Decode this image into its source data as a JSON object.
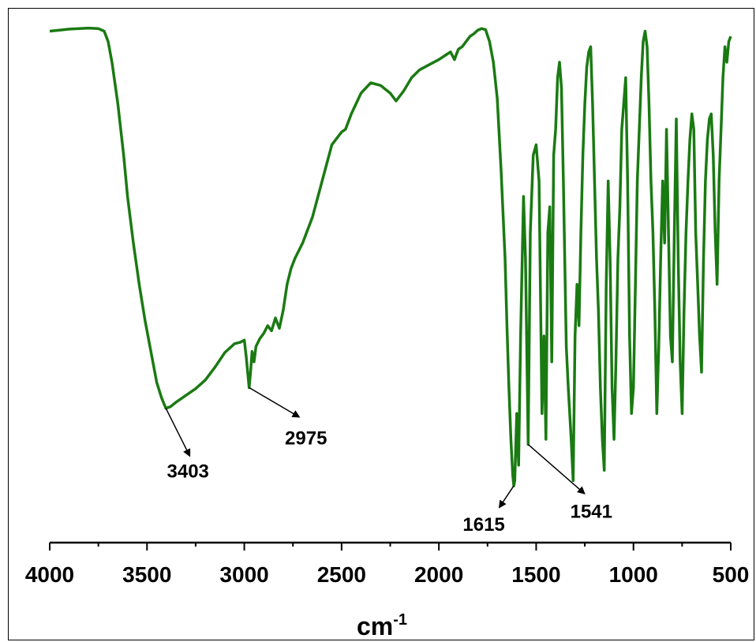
{
  "chart_data": {
    "type": "line",
    "title": "",
    "xlabel": "cm",
    "xlabel_superscript": "-1",
    "ylabel": "",
    "xlim": [
      4000,
      500
    ],
    "x_reversed": true,
    "ylim": [
      0,
      100
    ],
    "grid": false,
    "color": "#1a7a12",
    "x_ticks": [
      4000,
      3500,
      3000,
      2500,
      2000,
      1500,
      1000,
      500
    ],
    "annotations": [
      {
        "label": "3403",
        "x": 3403,
        "y": 26
      },
      {
        "label": "2975",
        "x": 2975,
        "y": 30
      },
      {
        "label": "1615",
        "x": 1615,
        "y": 11
      },
      {
        "label": "1541",
        "x": 1541,
        "y": 19
      }
    ],
    "series": [
      {
        "values": [
          [
            4000,
            99
          ],
          [
            3950,
            99.2
          ],
          [
            3900,
            99.4
          ],
          [
            3850,
            99.5
          ],
          [
            3800,
            99.6
          ],
          [
            3750,
            99.5
          ],
          [
            3720,
            99
          ],
          [
            3700,
            97
          ],
          [
            3680,
            93
          ],
          [
            3650,
            85
          ],
          [
            3620,
            75
          ],
          [
            3600,
            67
          ],
          [
            3570,
            58
          ],
          [
            3540,
            50
          ],
          [
            3510,
            43
          ],
          [
            3480,
            37
          ],
          [
            3450,
            31
          ],
          [
            3425,
            28
          ],
          [
            3403,
            26
          ],
          [
            3380,
            26.3
          ],
          [
            3350,
            27.2
          ],
          [
            3300,
            28.5
          ],
          [
            3250,
            29.8
          ],
          [
            3200,
            31.5
          ],
          [
            3150,
            34
          ],
          [
            3100,
            36.8
          ],
          [
            3050,
            38.5
          ],
          [
            3020,
            38.8
          ],
          [
            3000,
            39.2
          ],
          [
            2990,
            36
          ],
          [
            2975,
            30
          ],
          [
            2968,
            33
          ],
          [
            2960,
            37
          ],
          [
            2950,
            35
          ],
          [
            2940,
            38
          ],
          [
            2920,
            39.5
          ],
          [
            2900,
            40.5
          ],
          [
            2880,
            42
          ],
          [
            2860,
            41
          ],
          [
            2840,
            43.5
          ],
          [
            2820,
            41.5
          ],
          [
            2800,
            45
          ],
          [
            2780,
            50
          ],
          [
            2760,
            53
          ],
          [
            2740,
            55
          ],
          [
            2700,
            58
          ],
          [
            2650,
            63
          ],
          [
            2600,
            70
          ],
          [
            2550,
            77
          ],
          [
            2500,
            79.5
          ],
          [
            2480,
            80
          ],
          [
            2450,
            83
          ],
          [
            2400,
            87
          ],
          [
            2350,
            89
          ],
          [
            2300,
            88.5
          ],
          [
            2250,
            87
          ],
          [
            2220,
            85.5
          ],
          [
            2180,
            87.5
          ],
          [
            2140,
            90
          ],
          [
            2100,
            91.5
          ],
          [
            2050,
            92.5
          ],
          [
            2000,
            93.5
          ],
          [
            1960,
            94.5
          ],
          [
            1940,
            95
          ],
          [
            1920,
            93.5
          ],
          [
            1910,
            94.5
          ],
          [
            1900,
            95.5
          ],
          [
            1880,
            96
          ],
          [
            1860,
            97
          ],
          [
            1840,
            98
          ],
          [
            1820,
            98.5
          ],
          [
            1800,
            99.2
          ],
          [
            1780,
            99.5
          ],
          [
            1760,
            99.3
          ],
          [
            1740,
            97
          ],
          [
            1720,
            93
          ],
          [
            1700,
            86
          ],
          [
            1680,
            72
          ],
          [
            1660,
            55
          ],
          [
            1650,
            42
          ],
          [
            1640,
            30
          ],
          [
            1630,
            20
          ],
          [
            1620,
            13
          ],
          [
            1615,
            11
          ],
          [
            1610,
            12
          ],
          [
            1600,
            25
          ],
          [
            1590,
            15
          ],
          [
            1580,
            40
          ],
          [
            1565,
            67
          ],
          [
            1555,
            55
          ],
          [
            1541,
            19
          ],
          [
            1530,
            60
          ],
          [
            1515,
            75
          ],
          [
            1500,
            77
          ],
          [
            1485,
            70
          ],
          [
            1470,
            25
          ],
          [
            1460,
            40
          ],
          [
            1450,
            20
          ],
          [
            1440,
            60
          ],
          [
            1430,
            65
          ],
          [
            1420,
            35
          ],
          [
            1410,
            75
          ],
          [
            1400,
            80
          ],
          [
            1390,
            90
          ],
          [
            1380,
            93
          ],
          [
            1370,
            88
          ],
          [
            1360,
            70
          ],
          [
            1345,
            38
          ],
          [
            1335,
            30
          ],
          [
            1320,
            20
          ],
          [
            1310,
            12
          ],
          [
            1300,
            40
          ],
          [
            1290,
            50
          ],
          [
            1280,
            42
          ],
          [
            1270,
            60
          ],
          [
            1260,
            75
          ],
          [
            1250,
            85
          ],
          [
            1240,
            92
          ],
          [
            1230,
            95
          ],
          [
            1220,
            96
          ],
          [
            1210,
            85
          ],
          [
            1200,
            70
          ],
          [
            1190,
            55
          ],
          [
            1180,
            45
          ],
          [
            1170,
            30
          ],
          [
            1160,
            20
          ],
          [
            1150,
            14
          ],
          [
            1140,
            50
          ],
          [
            1130,
            70
          ],
          [
            1120,
            55
          ],
          [
            1110,
            30
          ],
          [
            1100,
            20
          ],
          [
            1090,
            35
          ],
          [
            1080,
            55
          ],
          [
            1070,
            65
          ],
          [
            1060,
            80
          ],
          [
            1050,
            85
          ],
          [
            1040,
            90
          ],
          [
            1030,
            70
          ],
          [
            1020,
            40
          ],
          [
            1010,
            25
          ],
          [
            1000,
            30
          ],
          [
            990,
            50
          ],
          [
            980,
            70
          ],
          [
            970,
            80
          ],
          [
            960,
            90
          ],
          [
            950,
            97
          ],
          [
            940,
            99
          ],
          [
            930,
            96
          ],
          [
            920,
            85
          ],
          [
            910,
            70
          ],
          [
            900,
            60
          ],
          [
            890,
            45
          ],
          [
            880,
            25
          ],
          [
            870,
            38
          ],
          [
            860,
            55
          ],
          [
            850,
            70
          ],
          [
            840,
            58
          ],
          [
            830,
            80
          ],
          [
            820,
            60
          ],
          [
            810,
            40
          ],
          [
            800,
            35
          ],
          [
            790,
            60
          ],
          [
            780,
            82
          ],
          [
            770,
            55
          ],
          [
            760,
            35
          ],
          [
            750,
            25
          ],
          [
            740,
            45
          ],
          [
            730,
            60
          ],
          [
            720,
            70
          ],
          [
            710,
            78
          ],
          [
            700,
            83
          ],
          [
            690,
            80
          ],
          [
            680,
            60
          ],
          [
            670,
            50
          ],
          [
            660,
            40
          ],
          [
            650,
            33
          ],
          [
            640,
            55
          ],
          [
            630,
            70
          ],
          [
            620,
            78
          ],
          [
            610,
            82
          ],
          [
            600,
            83
          ],
          [
            590,
            75
          ],
          [
            580,
            60
          ],
          [
            570,
            50
          ],
          [
            560,
            70
          ],
          [
            550,
            80
          ],
          [
            540,
            90
          ],
          [
            530,
            96
          ],
          [
            520,
            93
          ],
          [
            510,
            97
          ],
          [
            500,
            98
          ]
        ]
      }
    ]
  }
}
